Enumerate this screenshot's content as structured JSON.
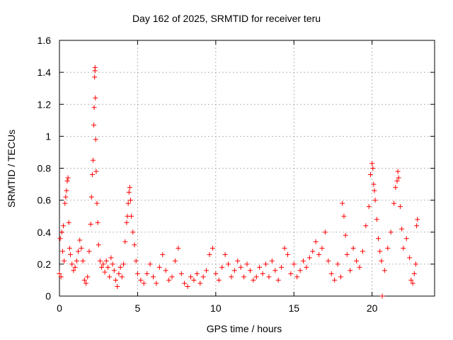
{
  "chart_data": {
    "type": "scatter",
    "title": "Day 162 of 2025, SRMTID for receiver teru",
    "xlabel": "GPS time / hours",
    "ylabel": "SRMTID / TECUs",
    "xlim": [
      0,
      24
    ],
    "ylim": [
      0,
      1.6
    ],
    "xticks": [
      0,
      5,
      10,
      15,
      20
    ],
    "yticks": [
      0,
      0.2,
      0.4,
      0.6,
      0.8,
      1,
      1.2,
      1.4,
      1.6
    ],
    "ytick_labels": [
      "0",
      "0.2",
      "0.4",
      "0.6",
      "0.8",
      "1",
      "1.2",
      "1.4",
      "1.6"
    ],
    "grid": true,
    "marker": "+",
    "color": "#ff0000",
    "series": [
      {
        "name": "SRMTID",
        "points": [
          [
            0.0,
            0.14
          ],
          [
            0.05,
            0.36
          ],
          [
            0.1,
            0.12
          ],
          [
            0.15,
            0.4
          ],
          [
            0.2,
            0.28
          ],
          [
            0.25,
            0.44
          ],
          [
            0.3,
            0.22
          ],
          [
            0.35,
            0.58
          ],
          [
            0.4,
            0.62
          ],
          [
            0.45,
            0.66
          ],
          [
            0.5,
            0.72
          ],
          [
            0.55,
            0.74
          ],
          [
            0.6,
            0.46
          ],
          [
            0.65,
            0.3
          ],
          [
            0.7,
            0.26
          ],
          [
            0.8,
            0.2
          ],
          [
            0.9,
            0.16
          ],
          [
            1.0,
            0.18
          ],
          [
            1.1,
            0.22
          ],
          [
            1.2,
            0.28
          ],
          [
            1.3,
            0.35
          ],
          [
            1.4,
            0.3
          ],
          [
            1.5,
            0.22
          ],
          [
            1.6,
            0.1
          ],
          [
            1.7,
            0.08
          ],
          [
            1.8,
            0.12
          ],
          [
            1.9,
            0.28
          ],
          [
            2.0,
            0.45
          ],
          [
            2.05,
            0.62
          ],
          [
            2.1,
            0.76
          ],
          [
            2.15,
            0.85
          ],
          [
            2.2,
            1.07
          ],
          [
            2.22,
            1.18
          ],
          [
            2.25,
            1.37
          ],
          [
            2.27,
            1.41
          ],
          [
            2.28,
            1.43
          ],
          [
            2.3,
            1.24
          ],
          [
            2.32,
            0.98
          ],
          [
            2.35,
            0.78
          ],
          [
            2.4,
            0.58
          ],
          [
            2.45,
            0.46
          ],
          [
            2.5,
            0.32
          ],
          [
            2.6,
            0.22
          ],
          [
            2.7,
            0.18
          ],
          [
            2.8,
            0.2
          ],
          [
            2.9,
            0.15
          ],
          [
            3.0,
            0.22
          ],
          [
            3.1,
            0.18
          ],
          [
            3.2,
            0.12
          ],
          [
            3.3,
            0.24
          ],
          [
            3.4,
            0.2
          ],
          [
            3.5,
            0.16
          ],
          [
            3.6,
            0.1
          ],
          [
            3.7,
            0.06
          ],
          [
            3.8,
            0.14
          ],
          [
            3.9,
            0.18
          ],
          [
            4.0,
            0.12
          ],
          [
            4.1,
            0.2
          ],
          [
            4.2,
            0.34
          ],
          [
            4.3,
            0.46
          ],
          [
            4.35,
            0.5
          ],
          [
            4.4,
            0.58
          ],
          [
            4.45,
            0.65
          ],
          [
            4.5,
            0.68
          ],
          [
            4.55,
            0.6
          ],
          [
            4.6,
            0.5
          ],
          [
            4.7,
            0.4
          ],
          [
            4.8,
            0.32
          ],
          [
            4.9,
            0.22
          ],
          [
            5.0,
            0.14
          ],
          [
            5.2,
            0.1
          ],
          [
            5.4,
            0.08
          ],
          [
            5.6,
            0.14
          ],
          [
            5.8,
            0.2
          ],
          [
            6.0,
            0.12
          ],
          [
            6.2,
            0.08
          ],
          [
            6.4,
            0.18
          ],
          [
            6.6,
            0.26
          ],
          [
            6.8,
            0.16
          ],
          [
            7.0,
            0.1
          ],
          [
            7.2,
            0.12
          ],
          [
            7.4,
            0.22
          ],
          [
            7.6,
            0.3
          ],
          [
            7.8,
            0.14
          ],
          [
            8.0,
            0.08
          ],
          [
            8.2,
            0.06
          ],
          [
            8.4,
            0.12
          ],
          [
            8.6,
            0.1
          ],
          [
            8.8,
            0.14
          ],
          [
            9.0,
            0.08
          ],
          [
            9.2,
            0.12
          ],
          [
            9.4,
            0.16
          ],
          [
            9.6,
            0.26
          ],
          [
            9.8,
            0.3
          ],
          [
            10.0,
            0.14
          ],
          [
            10.2,
            0.1
          ],
          [
            10.4,
            0.18
          ],
          [
            10.6,
            0.26
          ],
          [
            10.8,
            0.2
          ],
          [
            11.0,
            0.12
          ],
          [
            11.2,
            0.16
          ],
          [
            11.4,
            0.22
          ],
          [
            11.6,
            0.18
          ],
          [
            11.8,
            0.12
          ],
          [
            12.0,
            0.2
          ],
          [
            12.2,
            0.16
          ],
          [
            12.4,
            0.1
          ],
          [
            12.6,
            0.12
          ],
          [
            12.8,
            0.18
          ],
          [
            13.0,
            0.14
          ],
          [
            13.2,
            0.2
          ],
          [
            13.4,
            0.12
          ],
          [
            13.6,
            0.22
          ],
          [
            13.8,
            0.16
          ],
          [
            14.0,
            0.1
          ],
          [
            14.2,
            0.18
          ],
          [
            14.4,
            0.3
          ],
          [
            14.6,
            0.26
          ],
          [
            14.8,
            0.14
          ],
          [
            15.0,
            0.2
          ],
          [
            15.2,
            0.12
          ],
          [
            15.4,
            0.16
          ],
          [
            15.6,
            0.22
          ],
          [
            15.8,
            0.18
          ],
          [
            16.0,
            0.24
          ],
          [
            16.2,
            0.28
          ],
          [
            16.4,
            0.34
          ],
          [
            16.6,
            0.26
          ],
          [
            16.8,
            0.3
          ],
          [
            17.0,
            0.4
          ],
          [
            17.2,
            0.22
          ],
          [
            17.4,
            0.14
          ],
          [
            17.6,
            0.1
          ],
          [
            17.8,
            0.2
          ],
          [
            18.0,
            0.12
          ],
          [
            18.1,
            0.58
          ],
          [
            18.2,
            0.5
          ],
          [
            18.3,
            0.38
          ],
          [
            18.4,
            0.26
          ],
          [
            18.6,
            0.16
          ],
          [
            18.8,
            0.3
          ],
          [
            19.0,
            0.22
          ],
          [
            19.2,
            0.18
          ],
          [
            19.4,
            0.28
          ],
          [
            19.6,
            0.44
          ],
          [
            19.8,
            0.56
          ],
          [
            19.9,
            0.76
          ],
          [
            20.0,
            0.83
          ],
          [
            20.05,
            0.8
          ],
          [
            20.1,
            0.7
          ],
          [
            20.15,
            0.66
          ],
          [
            20.2,
            0.6
          ],
          [
            20.3,
            0.48
          ],
          [
            20.4,
            0.36
          ],
          [
            20.5,
            0.28
          ],
          [
            20.6,
            0.22
          ],
          [
            20.65,
            0.0
          ],
          [
            20.8,
            0.16
          ],
          [
            21.0,
            0.3
          ],
          [
            21.2,
            0.4
          ],
          [
            21.4,
            0.58
          ],
          [
            21.5,
            0.68
          ],
          [
            21.6,
            0.72
          ],
          [
            21.65,
            0.78
          ],
          [
            21.7,
            0.74
          ],
          [
            21.8,
            0.56
          ],
          [
            21.9,
            0.42
          ],
          [
            22.0,
            0.3
          ],
          [
            22.2,
            0.36
          ],
          [
            22.4,
            0.24
          ],
          [
            22.5,
            0.1
          ],
          [
            22.6,
            0.08
          ],
          [
            22.7,
            0.14
          ],
          [
            22.8,
            0.2
          ],
          [
            22.85,
            0.44
          ],
          [
            22.9,
            0.48
          ]
        ]
      }
    ]
  }
}
